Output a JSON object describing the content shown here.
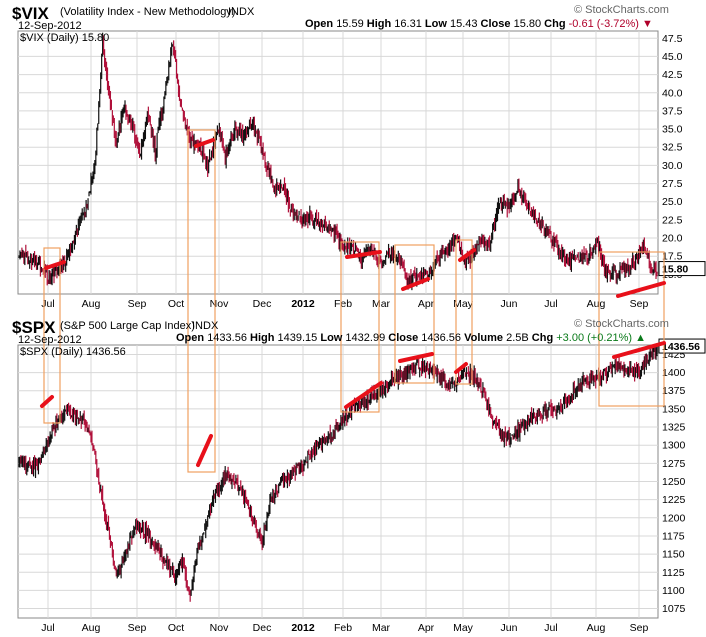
{
  "header_top": {
    "symbol": "$VIX",
    "name": "(Volatility Index - New Methodology)",
    "exchange": "INDX",
    "date": "12-Sep-2012",
    "ohlc": {
      "open_label": "Open",
      "open": "15.59",
      "high_label": "High",
      "high": "16.31",
      "low_label": "Low",
      "low": "15.43",
      "close_label": "Close",
      "close": "15.80",
      "chg_label": "Chg",
      "chg": "-0.61 (-3.72%)"
    },
    "legend": "$VIX (Daily) 15.80",
    "watermark": "© StockCharts.com"
  },
  "header_bottom": {
    "symbol": "$SPX",
    "name": "(S&P 500 Large Cap Index)",
    "exchange": "INDX",
    "date": "12-Sep-2012",
    "ohlc": {
      "open_label": "Open",
      "open": "1433.56",
      "high_label": "High",
      "high": "1439.15",
      "low_label": "Low",
      "low": "1432.99",
      "close_label": "Close",
      "close": "1436.56",
      "vol_label": "Volume",
      "vol": "2.5B",
      "chg_label": "Chg",
      "chg": "+3.00 (+0.21%)"
    },
    "legend": "$SPX (Daily) 1436.56",
    "watermark": "© StockCharts.com"
  },
  "colors": {
    "up": "#111111",
    "down": "#b0103a",
    "box": "#f0a060",
    "marker": "#e8101a",
    "grid": "#d8d8d8"
  },
  "chart_data": [
    {
      "type": "ohlc",
      "title": "$VIX (Volatility Index - New Methodology)",
      "y_ticks": [
        15,
        17.5,
        20,
        22.5,
        25,
        27.5,
        30,
        32.5,
        35,
        37.5,
        40,
        42.5,
        45,
        47.5
      ],
      "ylim": [
        12.3,
        48.5
      ],
      "last_value": "15.80",
      "x_ticks": [
        "Jul",
        "Aug",
        "Sep",
        "Oct",
        "Nov",
        "Dec",
        "2012",
        "Feb",
        "Mar",
        "Apr",
        "May",
        "Jun",
        "Jul",
        "Aug",
        "Sep"
      ],
      "anchor_series": [
        [
          0,
          17.9
        ],
        [
          10,
          16.8
        ],
        [
          18,
          17.0
        ],
        [
          30,
          14.5
        ],
        [
          45,
          16.5
        ],
        [
          55,
          19.5
        ],
        [
          68,
          24
        ],
        [
          78,
          30
        ],
        [
          86,
          47
        ],
        [
          92,
          40
        ],
        [
          100,
          33
        ],
        [
          108,
          38
        ],
        [
          116,
          36
        ],
        [
          124,
          31
        ],
        [
          132,
          37
        ],
        [
          140,
          32
        ],
        [
          150,
          40
        ],
        [
          158,
          47
        ],
        [
          166,
          38
        ],
        [
          174,
          34
        ],
        [
          184,
          33
        ],
        [
          194,
          30
        ],
        [
          205,
          35
        ],
        [
          212,
          31
        ],
        [
          222,
          35
        ],
        [
          232,
          34
        ],
        [
          240,
          36
        ],
        [
          252,
          31
        ],
        [
          262,
          27
        ],
        [
          272,
          27
        ],
        [
          280,
          24
        ],
        [
          290,
          22.5
        ],
        [
          300,
          23
        ],
        [
          312,
          22
        ],
        [
          322,
          21
        ],
        [
          332,
          19
        ],
        [
          342,
          19
        ],
        [
          352,
          17
        ],
        [
          362,
          18.5
        ],
        [
          372,
          17
        ],
        [
          382,
          18
        ],
        [
          392,
          17
        ],
        [
          400,
          14
        ],
        [
          410,
          15
        ],
        [
          420,
          15
        ],
        [
          430,
          17
        ],
        [
          440,
          18.5
        ],
        [
          450,
          20
        ],
        [
          458,
          17
        ],
        [
          464,
          17
        ],
        [
          474,
          20
        ],
        [
          484,
          19
        ],
        [
          494,
          25
        ],
        [
          504,
          24
        ],
        [
          514,
          27
        ],
        [
          524,
          24
        ],
        [
          534,
          22
        ],
        [
          544,
          21
        ],
        [
          554,
          18.5
        ],
        [
          564,
          17
        ],
        [
          574,
          17.5
        ],
        [
          584,
          17.5
        ],
        [
          594,
          19.5
        ],
        [
          604,
          15
        ],
        [
          614,
          15
        ],
        [
          624,
          16
        ],
        [
          634,
          17
        ],
        [
          642,
          19
        ],
        [
          650,
          16
        ],
        [
          656,
          15.8
        ]
      ]
    },
    {
      "type": "ohlc",
      "title": "$SPX (S&P 500 Large Cap Index)",
      "y_ticks": [
        1075,
        1100,
        1125,
        1150,
        1175,
        1200,
        1225,
        1250,
        1275,
        1300,
        1325,
        1350,
        1375,
        1400,
        1425
      ],
      "ylim": [
        1062,
        1438
      ],
      "last_value": "1436.56",
      "x_ticks": [
        "Jul",
        "Aug",
        "Sep",
        "Oct",
        "Nov",
        "Dec",
        "2012",
        "Feb",
        "Mar",
        "Apr",
        "May",
        "Jun",
        "Jul",
        "Aug",
        "Sep"
      ],
      "anchor_series": [
        [
          0,
          1280
        ],
        [
          8,
          1275
        ],
        [
          18,
          1270
        ],
        [
          28,
          1300
        ],
        [
          38,
          1330
        ],
        [
          48,
          1345
        ],
        [
          58,
          1340
        ],
        [
          68,
          1330
        ],
        [
          76,
          1300
        ],
        [
          86,
          1220
        ],
        [
          92,
          1180
        ],
        [
          100,
          1120
        ],
        [
          110,
          1150
        ],
        [
          120,
          1190
        ],
        [
          130,
          1180
        ],
        [
          140,
          1160
        ],
        [
          150,
          1140
        ],
        [
          160,
          1120
        ],
        [
          168,
          1140
        ],
        [
          176,
          1090
        ],
        [
          184,
          1160
        ],
        [
          194,
          1200
        ],
        [
          204,
          1240
        ],
        [
          214,
          1260
        ],
        [
          222,
          1250
        ],
        [
          232,
          1230
        ],
        [
          240,
          1200
        ],
        [
          250,
          1170
        ],
        [
          260,
          1230
        ],
        [
          270,
          1250
        ],
        [
          280,
          1260
        ],
        [
          290,
          1270
        ],
        [
          300,
          1290
        ],
        [
          310,
          1300
        ],
        [
          320,
          1310
        ],
        [
          330,
          1330
        ],
        [
          340,
          1345
        ],
        [
          350,
          1355
        ],
        [
          360,
          1365
        ],
        [
          370,
          1370
        ],
        [
          380,
          1385
        ],
        [
          390,
          1395
        ],
        [
          400,
          1400
        ],
        [
          410,
          1410
        ],
        [
          420,
          1405
        ],
        [
          430,
          1400
        ],
        [
          440,
          1385
        ],
        [
          450,
          1390
        ],
        [
          460,
          1400
        ],
        [
          468,
          1395
        ],
        [
          478,
          1370
        ],
        [
          488,
          1330
        ],
        [
          498,
          1310
        ],
        [
          508,
          1315
        ],
        [
          518,
          1325
        ],
        [
          528,
          1340
        ],
        [
          538,
          1345
        ],
        [
          548,
          1350
        ],
        [
          558,
          1355
        ],
        [
          568,
          1370
        ],
        [
          578,
          1385
        ],
        [
          588,
          1390
        ],
        [
          598,
          1395
        ],
        [
          608,
          1405
        ],
        [
          618,
          1410
        ],
        [
          628,
          1400
        ],
        [
          638,
          1405
        ],
        [
          648,
          1420
        ],
        [
          656,
          1436.56
        ]
      ]
    }
  ]
}
